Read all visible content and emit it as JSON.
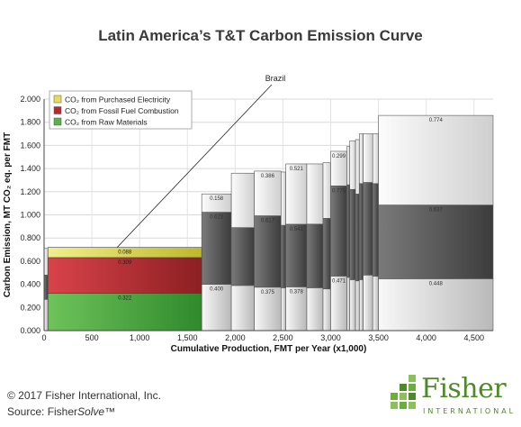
{
  "page": {
    "title": "Latin America’s T&T Carbon Emission Curve",
    "copyright": "© 2017 Fisher International, Inc.",
    "source_prefix": "Source: Fisher",
    "source_italic": "Solve",
    "source_suffix": "™",
    "logo_text": "Fisher",
    "logo_subtext": "INTERNATIONAL"
  },
  "chart_data": {
    "type": "bar",
    "subtype": "variable-width stacked bar (cost curve)",
    "xlabel": "Cumulative Production, FMT per Year (x1,000)",
    "ylabel": "Carbon Emission, MT CO₂ eq. per FMT",
    "xlim": [
      0,
      4700
    ],
    "ylim": [
      0,
      2.0
    ],
    "x_ticks": [
      0,
      500,
      1000,
      1500,
      2000,
      2500,
      3000,
      3500,
      4000,
      4500
    ],
    "x_tick_labels": [
      "0",
      "500",
      "1,000",
      "1,500",
      "2,000",
      "2,500",
      "3,000",
      "3,500",
      "4,000",
      "4,500"
    ],
    "y_ticks": [
      0,
      0.2,
      0.4,
      0.6,
      0.8,
      1.0,
      1.2,
      1.4,
      1.6,
      1.8,
      2.0
    ],
    "y_tick_labels": [
      "0.000",
      "0.200",
      "0.400",
      "0.600",
      "0.800",
      "1.000",
      "1.200",
      "1.400",
      "1.600",
      "1.800",
      "2.000"
    ],
    "grid": true,
    "legend_position": "top-left",
    "series": [
      {
        "name": "CO₂ from Purchased Electricity",
        "color": "#e3df5a"
      },
      {
        "name": "CO₂ from Fossil Fuel Combustion",
        "color": "#b8282e"
      },
      {
        "name": "CO₂ from Raw Materials",
        "color": "#5cb04a"
      }
    ],
    "highlight": {
      "label": "Brazil",
      "x_start": 40,
      "x_end": 1650,
      "values": [
        0.322,
        0.309,
        0.088
      ],
      "value_labels": [
        "0.322",
        "0.309",
        "0.088"
      ]
    },
    "mills": [
      {
        "x_start": 0,
        "x_end": 40,
        "values": [
          0.27,
          0.21,
          0.23
        ]
      },
      {
        "x_start": 1650,
        "x_end": 1960,
        "values": [
          0.4,
          0.623,
          0.158
        ],
        "value_labels": [
          "0.400",
          "0.623",
          "0.158"
        ]
      },
      {
        "x_start": 1960,
        "x_end": 2200,
        "values": [
          0.39,
          0.5,
          0.47
        ]
      },
      {
        "x_start": 2200,
        "x_end": 2480,
        "values": [
          0.375,
          0.617,
          0.386
        ],
        "value_labels": [
          "0.375",
          "0.617",
          "0.386"
        ]
      },
      {
        "x_start": 2480,
        "x_end": 2530,
        "values": [
          0.37,
          0.54,
          0.46
        ]
      },
      {
        "x_start": 2530,
        "x_end": 2750,
        "values": [
          0.378,
          0.541,
          0.521
        ],
        "value_labels": [
          "0.378",
          "0.541",
          "0.521"
        ]
      },
      {
        "x_start": 2750,
        "x_end": 2920,
        "values": [
          0.37,
          0.55,
          0.52
        ]
      },
      {
        "x_start": 2920,
        "x_end": 3000,
        "values": [
          0.36,
          0.61,
          0.48
        ]
      },
      {
        "x_start": 3000,
        "x_end": 3170,
        "values": [
          0.471,
          0.779,
          0.299
        ],
        "value_labels": [
          "0.471",
          "0.779",
          "0.299"
        ]
      },
      {
        "x_start": 3170,
        "x_end": 3200,
        "values": [
          0.46,
          0.8,
          0.33
        ]
      },
      {
        "x_start": 3200,
        "x_end": 3260,
        "values": [
          0.44,
          0.78,
          0.42
        ]
      },
      {
        "x_start": 3260,
        "x_end": 3300,
        "values": [
          0.43,
          0.75,
          0.47
        ]
      },
      {
        "x_start": 3300,
        "x_end": 3340,
        "values": [
          0.44,
          0.83,
          0.43
        ]
      },
      {
        "x_start": 3340,
        "x_end": 3440,
        "values": [
          0.48,
          0.8,
          0.42
        ]
      },
      {
        "x_start": 3440,
        "x_end": 3500,
        "values": [
          0.47,
          0.8,
          0.43
        ]
      },
      {
        "x_start": 3500,
        "x_end": 4700,
        "values": [
          0.448,
          0.637,
          0.774
        ],
        "value_labels": [
          "0.448",
          "0.637",
          "0.774"
        ]
      }
    ]
  }
}
